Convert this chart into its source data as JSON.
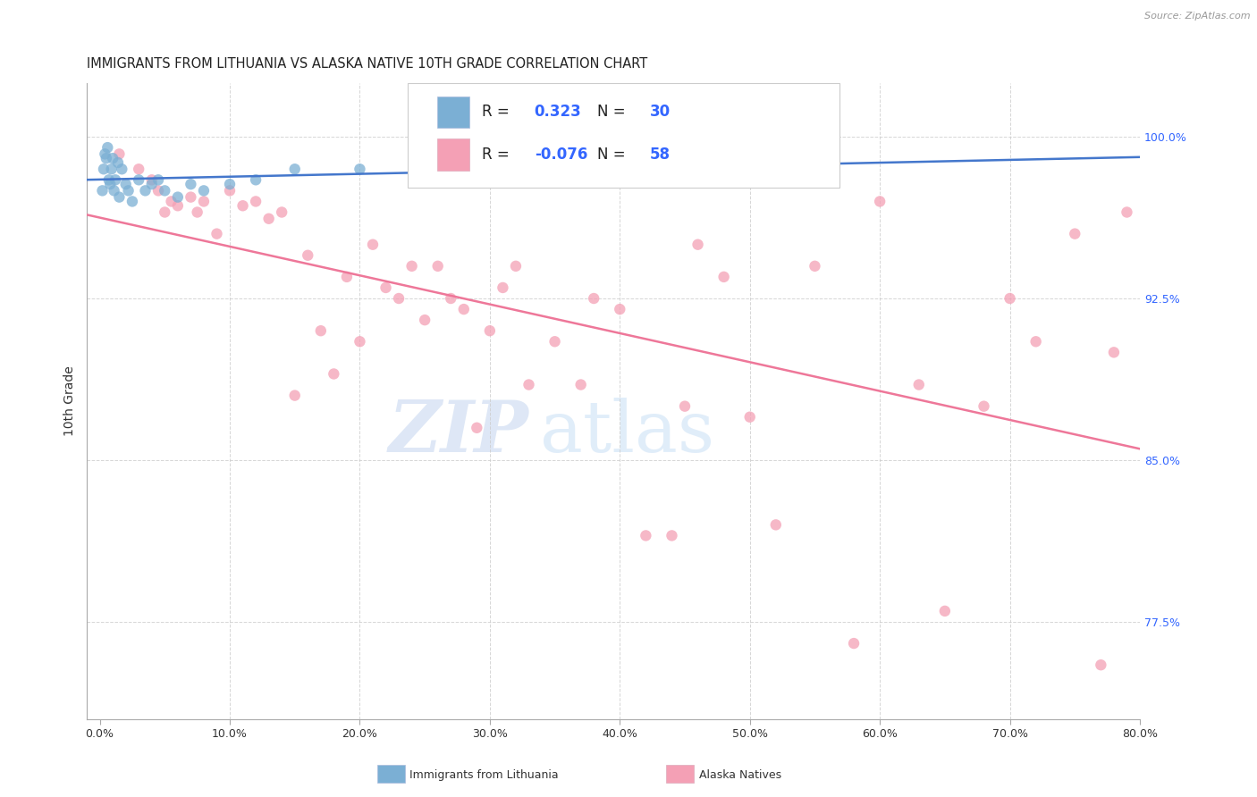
{
  "title": "IMMIGRANTS FROM LITHUANIA VS ALASKA NATIVE 10TH GRADE CORRELATION CHART",
  "source": "Source: ZipAtlas.com",
  "ylabel": "10th Grade",
  "x_tick_labels": [
    "0.0%",
    "10.0%",
    "20.0%",
    "30.0%",
    "40.0%",
    "50.0%",
    "60.0%",
    "70.0%",
    "80.0%"
  ],
  "x_tick_values": [
    0.0,
    10.0,
    20.0,
    30.0,
    40.0,
    50.0,
    60.0,
    70.0,
    80.0
  ],
  "y_tick_labels": [
    "100.0%",
    "92.5%",
    "85.0%",
    "77.5%"
  ],
  "y_tick_values": [
    100.0,
    92.5,
    85.0,
    77.5
  ],
  "xlim": [
    -1.0,
    80.0
  ],
  "ylim": [
    73.0,
    102.5
  ],
  "blue_R": "0.323",
  "blue_N": "30",
  "pink_R": "-0.076",
  "pink_N": "58",
  "blue_color": "#7bafd4",
  "pink_color": "#f4a0b5",
  "blue_line_color": "#4477cc",
  "pink_line_color": "#ee7799",
  "watermark_zip": "ZIP",
  "watermark_atlas": "atlas",
  "legend_label_blue": "Immigrants from Lithuania",
  "legend_label_pink": "Alaska Natives",
  "blue_x": [
    0.2,
    0.3,
    0.4,
    0.5,
    0.6,
    0.7,
    0.8,
    0.9,
    1.0,
    1.1,
    1.2,
    1.4,
    1.5,
    1.7,
    2.0,
    2.2,
    2.5,
    3.0,
    3.5,
    4.0,
    4.5,
    5.0,
    6.0,
    7.0,
    8.0,
    10.0,
    12.0,
    15.0,
    20.0,
    27.0
  ],
  "blue_y": [
    97.5,
    98.5,
    99.2,
    99.0,
    99.5,
    98.0,
    97.8,
    98.5,
    99.0,
    97.5,
    98.0,
    98.8,
    97.2,
    98.5,
    97.8,
    97.5,
    97.0,
    98.0,
    97.5,
    97.8,
    98.0,
    97.5,
    97.2,
    97.8,
    97.5,
    97.8,
    98.0,
    98.5,
    98.5,
    99.0
  ],
  "pink_x": [
    1.5,
    3.0,
    4.0,
    4.5,
    5.0,
    5.5,
    6.0,
    7.0,
    7.5,
    8.0,
    9.0,
    10.0,
    11.0,
    12.0,
    13.0,
    14.0,
    15.0,
    16.0,
    17.0,
    18.0,
    19.0,
    20.0,
    21.0,
    22.0,
    23.0,
    24.0,
    25.0,
    26.0,
    27.0,
    28.0,
    29.0,
    30.0,
    31.0,
    32.0,
    33.0,
    35.0,
    37.0,
    38.0,
    40.0,
    42.0,
    44.0,
    45.0,
    46.0,
    48.0,
    50.0,
    52.0,
    55.0,
    58.0,
    60.0,
    63.0,
    65.0,
    68.0,
    70.0,
    72.0,
    75.0,
    77.0,
    78.0,
    79.0
  ],
  "pink_y": [
    99.2,
    98.5,
    98.0,
    97.5,
    96.5,
    97.0,
    96.8,
    97.2,
    96.5,
    97.0,
    95.5,
    97.5,
    96.8,
    97.0,
    96.2,
    96.5,
    88.0,
    94.5,
    91.0,
    89.0,
    93.5,
    90.5,
    95.0,
    93.0,
    92.5,
    94.0,
    91.5,
    94.0,
    92.5,
    92.0,
    86.5,
    91.0,
    93.0,
    94.0,
    88.5,
    90.5,
    88.5,
    92.5,
    92.0,
    81.5,
    81.5,
    87.5,
    95.0,
    93.5,
    87.0,
    82.0,
    94.0,
    76.5,
    97.0,
    88.5,
    78.0,
    87.5,
    92.5,
    90.5,
    95.5,
    75.5,
    90.0,
    96.5
  ],
  "background_color": "#ffffff",
  "grid_color": "#cccccc",
  "title_color": "#222222",
  "right_axis_color": "#3366ff",
  "marker_size_blue": 80,
  "marker_size_pink": 80,
  "legend_text_color": "#222222",
  "legend_value_color": "#3366ff"
}
